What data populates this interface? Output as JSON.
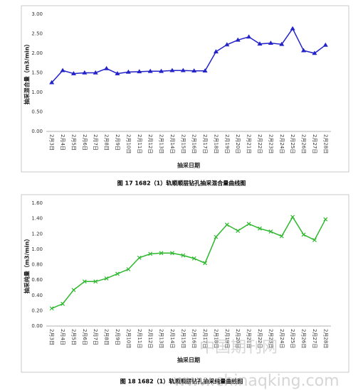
{
  "chart_data": [
    {
      "type": "line",
      "title": "图 17  1682（1）轨顺顺层钻孔抽采混合量曲线图",
      "x_label": "抽采日期",
      "y_label": "抽采混合量（m3/min）",
      "categories": [
        "2月3日",
        "2月4日",
        "2月5日",
        "2月6日",
        "2月7日",
        "2月8日",
        "2月9日",
        "2月10日",
        "2月11日",
        "2月12日",
        "2月13日",
        "2月14日",
        "2月15日",
        "2月16日",
        "2月17日",
        "2月18日",
        "2月19日",
        "2月20日",
        "2月21日",
        "2月22日",
        "2月23日",
        "2月24日",
        "2月25日",
        "2月26日",
        "2月27日",
        "2月28日"
      ],
      "values": [
        1.25,
        1.56,
        1.48,
        1.5,
        1.5,
        1.61,
        1.48,
        1.52,
        1.53,
        1.54,
        1.54,
        1.56,
        1.56,
        1.55,
        1.55,
        2.04,
        2.22,
        2.34,
        2.42,
        2.24,
        2.26,
        2.23,
        2.63,
        2.07,
        2.0,
        2.21
      ],
      "color": "#2323c8",
      "marker": "triangle",
      "ylim": [
        0,
        3
      ],
      "yticks": [
        {
          "value": 0,
          "label": "0.00"
        },
        {
          "value": 0.5,
          "label": "0.50"
        },
        {
          "value": 1,
          "label": "1.00"
        },
        {
          "value": 1.5,
          "label": "1.50"
        },
        {
          "value": 2,
          "label": "2.00"
        },
        {
          "value": 2.5,
          "label": "2.50"
        },
        {
          "value": 3,
          "label": "3.00"
        }
      ],
      "grid": false
    },
    {
      "type": "line",
      "title": "图 18  1682（1）轨顺顺层钻孔抽采纯量曲线图",
      "x_label": "抽采日期",
      "y_label": "抽采纯量（m3/min）",
      "categories": [
        "2月3日",
        "2月4日",
        "2月5日",
        "2月6日",
        "2月7日",
        "2月8日",
        "2月9日",
        "2月10日",
        "2月11日",
        "2月12日",
        "2月13日",
        "2月14日",
        "2月15日",
        "2月16日",
        "2月17日",
        "2月18日",
        "2月19日",
        "2月20日",
        "2月21日",
        "2月22日",
        "2月23日",
        "2月24日",
        "2月25日",
        "2月26日",
        "2月27日",
        "2月28日"
      ],
      "values": [
        0.23,
        0.29,
        0.47,
        0.58,
        0.58,
        0.62,
        0.68,
        0.74,
        0.89,
        0.94,
        0.95,
        0.95,
        0.92,
        0.88,
        0.82,
        1.16,
        1.32,
        1.24,
        1.33,
        1.27,
        1.23,
        1.17,
        1.42,
        1.19,
        1.12,
        1.39
      ],
      "color": "#2eb82e",
      "marker": "x",
      "ylim": [
        0,
        1.6
      ],
      "yticks": [
        {
          "value": 0,
          "label": "0.00"
        },
        {
          "value": 0.2,
          "label": "0.20"
        },
        {
          "value": 0.4,
          "label": "0.40"
        },
        {
          "value": 0.6,
          "label": "0.60"
        },
        {
          "value": 0.8,
          "label": "0.80"
        },
        {
          "value": 1,
          "label": "1.00"
        },
        {
          "value": 1.2,
          "label": "1.20"
        },
        {
          "value": 1.4,
          "label": "1.40"
        },
        {
          "value": 1.6,
          "label": "1.60"
        }
      ],
      "grid": false
    }
  ],
  "watermark": {
    "cn": "中国期刊网",
    "url": "www.chinaqking.com"
  }
}
